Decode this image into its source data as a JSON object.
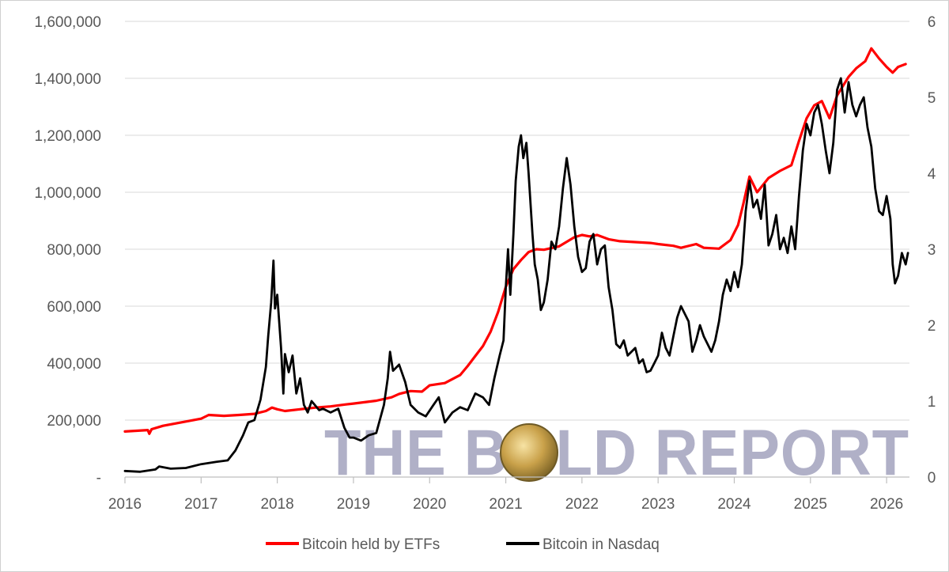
{
  "chart_data": {
    "type": "line",
    "title": "",
    "watermark": "THE BOLD REPORT",
    "x_axis": {
      "ticks": [
        "2016",
        "2017",
        "2018",
        "2019",
        "2020",
        "2021",
        "2022",
        "2023",
        "2024",
        "2025",
        "2026"
      ],
      "range": [
        2016.0,
        2026.3
      ]
    },
    "y_left": {
      "ticks": [
        "-",
        "200,000",
        "400,000",
        "600,000",
        "800,000",
        "1,000,000",
        "1,200,000",
        "1,400,000",
        "1,600,000"
      ],
      "range": [
        0,
        1600000
      ]
    },
    "y_right": {
      "ticks": [
        "0",
        "1",
        "2",
        "3",
        "4",
        "5",
        "6"
      ],
      "range": [
        0,
        6
      ]
    },
    "grid": "horizontal",
    "legend_position": "bottom",
    "series": [
      {
        "name": "Bitcoin held by ETFs",
        "axis": "left",
        "color": "#ff0000",
        "points": [
          [
            2016.0,
            160000
          ],
          [
            2016.3,
            165000
          ],
          [
            2016.32,
            152000
          ],
          [
            2016.35,
            168000
          ],
          [
            2016.5,
            180000
          ],
          [
            2016.8,
            195000
          ],
          [
            2017.0,
            205000
          ],
          [
            2017.1,
            218000
          ],
          [
            2017.3,
            215000
          ],
          [
            2017.5,
            218000
          ],
          [
            2017.7,
            222000
          ],
          [
            2017.85,
            232000
          ],
          [
            2017.93,
            244000
          ],
          [
            2018.0,
            238000
          ],
          [
            2018.1,
            232000
          ],
          [
            2018.3,
            238000
          ],
          [
            2018.5,
            244000
          ],
          [
            2018.7,
            248000
          ],
          [
            2018.9,
            255000
          ],
          [
            2019.0,
            258000
          ],
          [
            2019.3,
            268000
          ],
          [
            2019.5,
            280000
          ],
          [
            2019.6,
            292000
          ],
          [
            2019.75,
            302000
          ],
          [
            2019.9,
            300000
          ],
          [
            2020.0,
            322000
          ],
          [
            2020.2,
            330000
          ],
          [
            2020.4,
            358000
          ],
          [
            2020.5,
            390000
          ],
          [
            2020.6,
            425000
          ],
          [
            2020.7,
            460000
          ],
          [
            2020.8,
            510000
          ],
          [
            2020.9,
            580000
          ],
          [
            2021.0,
            668000
          ],
          [
            2021.1,
            730000
          ],
          [
            2021.2,
            762000
          ],
          [
            2021.3,
            790000
          ],
          [
            2021.4,
            800000
          ],
          [
            2021.5,
            798000
          ],
          [
            2021.7,
            810000
          ],
          [
            2021.9,
            842000
          ],
          [
            2022.0,
            850000
          ],
          [
            2022.1,
            845000
          ],
          [
            2022.2,
            850000
          ],
          [
            2022.35,
            835000
          ],
          [
            2022.5,
            828000
          ],
          [
            2022.7,
            825000
          ],
          [
            2022.9,
            822000
          ],
          [
            2023.0,
            818000
          ],
          [
            2023.2,
            812000
          ],
          [
            2023.3,
            805000
          ],
          [
            2023.5,
            818000
          ],
          [
            2023.6,
            805000
          ],
          [
            2023.8,
            802000
          ],
          [
            2023.95,
            832000
          ],
          [
            2024.05,
            885000
          ],
          [
            2024.12,
            960000
          ],
          [
            2024.2,
            1055000
          ],
          [
            2024.3,
            1000000
          ],
          [
            2024.45,
            1050000
          ],
          [
            2024.6,
            1075000
          ],
          [
            2024.75,
            1095000
          ],
          [
            2024.85,
            1180000
          ],
          [
            2024.95,
            1260000
          ],
          [
            2025.05,
            1305000
          ],
          [
            2025.15,
            1320000
          ],
          [
            2025.25,
            1260000
          ],
          [
            2025.35,
            1340000
          ],
          [
            2025.5,
            1405000
          ],
          [
            2025.6,
            1435000
          ],
          [
            2025.72,
            1460000
          ],
          [
            2025.8,
            1505000
          ],
          [
            2025.9,
            1470000
          ],
          [
            2026.0,
            1440000
          ],
          [
            2026.08,
            1420000
          ],
          [
            2026.15,
            1440000
          ],
          [
            2026.25,
            1450000
          ]
        ]
      },
      {
        "name": "Bitcoin in Nasdaq",
        "axis": "right",
        "color": "#000000",
        "points": [
          [
            2016.0,
            0.08
          ],
          [
            2016.2,
            0.07
          ],
          [
            2016.4,
            0.1
          ],
          [
            2016.45,
            0.14
          ],
          [
            2016.6,
            0.11
          ],
          [
            2016.8,
            0.12
          ],
          [
            2017.0,
            0.17
          ],
          [
            2017.2,
            0.2
          ],
          [
            2017.35,
            0.22
          ],
          [
            2017.45,
            0.35
          ],
          [
            2017.55,
            0.55
          ],
          [
            2017.62,
            0.72
          ],
          [
            2017.7,
            0.75
          ],
          [
            2017.78,
            1.02
          ],
          [
            2017.85,
            1.45
          ],
          [
            2017.88,
            1.85
          ],
          [
            2017.92,
            2.3
          ],
          [
            2017.95,
            2.85
          ],
          [
            2017.97,
            2.22
          ],
          [
            2018.0,
            2.4
          ],
          [
            2018.05,
            1.7
          ],
          [
            2018.08,
            1.1
          ],
          [
            2018.1,
            1.62
          ],
          [
            2018.15,
            1.38
          ],
          [
            2018.2,
            1.6
          ],
          [
            2018.25,
            1.1
          ],
          [
            2018.3,
            1.3
          ],
          [
            2018.35,
            0.95
          ],
          [
            2018.4,
            0.85
          ],
          [
            2018.45,
            1.0
          ],
          [
            2018.55,
            0.88
          ],
          [
            2018.6,
            0.9
          ],
          [
            2018.7,
            0.85
          ],
          [
            2018.8,
            0.9
          ],
          [
            2018.88,
            0.65
          ],
          [
            2018.95,
            0.52
          ],
          [
            2019.0,
            0.52
          ],
          [
            2019.1,
            0.48
          ],
          [
            2019.2,
            0.55
          ],
          [
            2019.3,
            0.58
          ],
          [
            2019.4,
            0.95
          ],
          [
            2019.45,
            1.3
          ],
          [
            2019.48,
            1.65
          ],
          [
            2019.52,
            1.4
          ],
          [
            2019.6,
            1.48
          ],
          [
            2019.68,
            1.25
          ],
          [
            2019.75,
            0.95
          ],
          [
            2019.85,
            0.85
          ],
          [
            2019.95,
            0.8
          ],
          [
            2020.05,
            0.95
          ],
          [
            2020.12,
            1.05
          ],
          [
            2020.2,
            0.72
          ],
          [
            2020.3,
            0.85
          ],
          [
            2020.4,
            0.92
          ],
          [
            2020.5,
            0.88
          ],
          [
            2020.6,
            1.1
          ],
          [
            2020.7,
            1.05
          ],
          [
            2020.78,
            0.95
          ],
          [
            2020.85,
            1.3
          ],
          [
            2020.92,
            1.6
          ],
          [
            2020.97,
            1.8
          ],
          [
            2021.0,
            2.5
          ],
          [
            2021.03,
            3.0
          ],
          [
            2021.06,
            2.4
          ],
          [
            2021.1,
            3.2
          ],
          [
            2021.13,
            3.9
          ],
          [
            2021.17,
            4.35
          ],
          [
            2021.2,
            4.5
          ],
          [
            2021.23,
            4.2
          ],
          [
            2021.27,
            4.4
          ],
          [
            2021.3,
            4.0
          ],
          [
            2021.35,
            3.2
          ],
          [
            2021.38,
            2.8
          ],
          [
            2021.42,
            2.6
          ],
          [
            2021.46,
            2.2
          ],
          [
            2021.5,
            2.3
          ],
          [
            2021.55,
            2.6
          ],
          [
            2021.6,
            3.1
          ],
          [
            2021.65,
            3.0
          ],
          [
            2021.7,
            3.3
          ],
          [
            2021.75,
            3.8
          ],
          [
            2021.8,
            4.2
          ],
          [
            2021.85,
            3.85
          ],
          [
            2021.9,
            3.3
          ],
          [
            2021.95,
            2.9
          ],
          [
            2022.0,
            2.7
          ],
          [
            2022.05,
            2.75
          ],
          [
            2022.1,
            3.1
          ],
          [
            2022.15,
            3.2
          ],
          [
            2022.2,
            2.8
          ],
          [
            2022.25,
            3.0
          ],
          [
            2022.3,
            3.05
          ],
          [
            2022.35,
            2.5
          ],
          [
            2022.4,
            2.2
          ],
          [
            2022.45,
            1.75
          ],
          [
            2022.5,
            1.7
          ],
          [
            2022.55,
            1.8
          ],
          [
            2022.6,
            1.6
          ],
          [
            2022.7,
            1.7
          ],
          [
            2022.75,
            1.5
          ],
          [
            2022.8,
            1.55
          ],
          [
            2022.85,
            1.38
          ],
          [
            2022.9,
            1.4
          ],
          [
            2022.95,
            1.5
          ],
          [
            2023.0,
            1.6
          ],
          [
            2023.05,
            1.9
          ],
          [
            2023.1,
            1.7
          ],
          [
            2023.15,
            1.6
          ],
          [
            2023.2,
            1.85
          ],
          [
            2023.25,
            2.1
          ],
          [
            2023.3,
            2.25
          ],
          [
            2023.35,
            2.15
          ],
          [
            2023.4,
            2.05
          ],
          [
            2023.45,
            1.65
          ],
          [
            2023.5,
            1.8
          ],
          [
            2023.55,
            2.0
          ],
          [
            2023.6,
            1.85
          ],
          [
            2023.65,
            1.75
          ],
          [
            2023.7,
            1.65
          ],
          [
            2023.75,
            1.8
          ],
          [
            2023.8,
            2.05
          ],
          [
            2023.85,
            2.4
          ],
          [
            2023.9,
            2.6
          ],
          [
            2023.95,
            2.45
          ],
          [
            2024.0,
            2.7
          ],
          [
            2024.05,
            2.5
          ],
          [
            2024.1,
            2.8
          ],
          [
            2024.15,
            3.5
          ],
          [
            2024.2,
            3.9
          ],
          [
            2024.25,
            3.55
          ],
          [
            2024.3,
            3.65
          ],
          [
            2024.35,
            3.4
          ],
          [
            2024.4,
            3.85
          ],
          [
            2024.45,
            3.05
          ],
          [
            2024.5,
            3.2
          ],
          [
            2024.55,
            3.45
          ],
          [
            2024.6,
            3.0
          ],
          [
            2024.65,
            3.15
          ],
          [
            2024.7,
            2.95
          ],
          [
            2024.75,
            3.3
          ],
          [
            2024.8,
            3.0
          ],
          [
            2024.85,
            3.7
          ],
          [
            2024.9,
            4.3
          ],
          [
            2024.95,
            4.65
          ],
          [
            2025.0,
            4.5
          ],
          [
            2025.05,
            4.8
          ],
          [
            2025.1,
            4.9
          ],
          [
            2025.15,
            4.65
          ],
          [
            2025.2,
            4.3
          ],
          [
            2025.25,
            4.0
          ],
          [
            2025.3,
            4.4
          ],
          [
            2025.35,
            5.1
          ],
          [
            2025.4,
            5.25
          ],
          [
            2025.45,
            4.8
          ],
          [
            2025.5,
            5.2
          ],
          [
            2025.55,
            4.9
          ],
          [
            2025.6,
            4.75
          ],
          [
            2025.65,
            4.9
          ],
          [
            2025.7,
            5.0
          ],
          [
            2025.75,
            4.6
          ],
          [
            2025.8,
            4.35
          ],
          [
            2025.85,
            3.8
          ],
          [
            2025.9,
            3.5
          ],
          [
            2025.95,
            3.45
          ],
          [
            2026.0,
            3.7
          ],
          [
            2026.05,
            3.4
          ],
          [
            2026.08,
            2.8
          ],
          [
            2026.11,
            2.55
          ],
          [
            2026.15,
            2.65
          ],
          [
            2026.2,
            2.95
          ],
          [
            2026.25,
            2.8
          ],
          [
            2026.28,
            2.95
          ]
        ]
      }
    ]
  }
}
